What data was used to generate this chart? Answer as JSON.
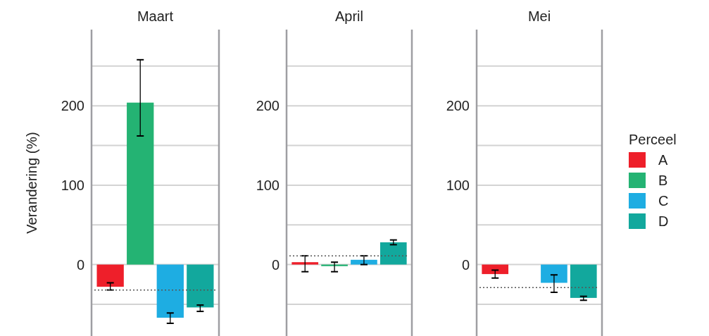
{
  "chart_data": [
    {
      "type": "bar",
      "title": "Maart",
      "ylabel": "Verandering (%)",
      "categories": [
        null
      ],
      "ylim": [
        -90,
        296
      ],
      "yticks": [
        {
          "value": -50,
          "label": null
        },
        0,
        {
          "value": 50,
          "label": null
        },
        100,
        {
          "value": 150,
          "label": null
        },
        200,
        {
          "value": 250,
          "label": null
        }
      ],
      "grid": "y",
      "legend": false,
      "series": [
        {
          "color": "#ee1f2a",
          "values": [
            -28
          ],
          "errors": [
            [
              -32,
              -23
            ]
          ]
        },
        {
          "color": "#24b373",
          "values": [
            204
          ],
          "errors": [
            [
              162,
              258
            ]
          ]
        },
        {
          "color": "#1eade2",
          "values": [
            -67
          ],
          "errors": [
            [
              -74,
              -61
            ]
          ]
        },
        {
          "color": "#12a89d",
          "values": [
            -54
          ],
          "errors": [
            [
              -59,
              -51
            ]
          ]
        }
      ],
      "ref_lines": [
        {
          "axis": "y",
          "value": -32,
          "color": "#555555",
          "line_style": "dotted"
        }
      ]
    },
    {
      "type": "bar",
      "title": "April",
      "categories": [
        null
      ],
      "ylim": [
        -90,
        296
      ],
      "yticks": [
        {
          "value": -50,
          "label": null
        },
        0,
        {
          "value": 50,
          "label": null
        },
        100,
        {
          "value": 150,
          "label": null
        },
        200,
        {
          "value": 250,
          "label": null
        }
      ],
      "grid": "y",
      "legend": false,
      "series": [
        {
          "color": "#ee1f2a",
          "values": [
            3
          ],
          "errors": [
            [
              -9,
              11
            ]
          ]
        },
        {
          "color": "#24b373",
          "values": [
            -2
          ],
          "errors": [
            [
              -9,
              3
            ]
          ]
        },
        {
          "color": "#1eade2",
          "values": [
            6
          ],
          "errors": [
            [
              0,
              11
            ]
          ]
        },
        {
          "color": "#12a89d",
          "values": [
            28
          ],
          "errors": [
            [
              25,
              31
            ]
          ]
        }
      ],
      "ref_lines": [
        {
          "axis": "y",
          "value": 11,
          "color": "#555555",
          "line_style": "dotted"
        }
      ]
    },
    {
      "type": "bar",
      "title": "Mei",
      "legend_title": "Perceel",
      "categories": [
        null
      ],
      "ylim": [
        -90,
        296
      ],
      "yticks": [
        {
          "value": -50,
          "label": null
        },
        0,
        {
          "value": 50,
          "label": null
        },
        100,
        {
          "value": 150,
          "label": null
        },
        200,
        {
          "value": 250,
          "label": null
        }
      ],
      "grid": "y",
      "legend": "right",
      "series": [
        {
          "name": "A",
          "color": "#ee1f2a",
          "values": [
            -12
          ],
          "errors": [
            [
              -17,
              -7
            ]
          ]
        },
        {
          "name": "B",
          "color": "#24b373",
          "values": [
            null
          ],
          "errors": [
            null
          ]
        },
        {
          "name": "C",
          "color": "#1eade2",
          "values": [
            -23
          ],
          "errors": [
            [
              -35,
              -13
            ]
          ]
        },
        {
          "name": "D",
          "color": "#12a89d",
          "values": [
            -42
          ],
          "errors": [
            [
              -45,
              -40
            ]
          ]
        }
      ],
      "ref_lines": [
        {
          "axis": "y",
          "value": -29,
          "color": "#555555",
          "line_style": "dotted"
        }
      ]
    }
  ]
}
